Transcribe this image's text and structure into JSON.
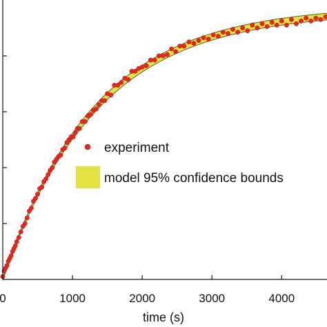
{
  "chart_data": {
    "type": "scatter",
    "title": "",
    "xlabel": "time (s)",
    "ylabel": "",
    "xlim": [
      0,
      4650
    ],
    "ylim": [
      0,
      1.0
    ],
    "grid": false,
    "x_ticks": [
      0,
      1000,
      2000,
      3000,
      4000
    ],
    "x_tick_labels": [
      "0",
      "1000",
      "2000",
      "3000",
      "4000"
    ],
    "y_ticks": [
      0.2,
      0.4,
      0.6,
      0.8
    ],
    "legend_position": "center-right",
    "model": {
      "form": "exponential-approach",
      "amplitude": 0.97,
      "time_constant": 1330,
      "band_half_width": 0.012
    },
    "series": [
      {
        "name": "experiment",
        "color": "#e02a1f",
        "marker": "circle",
        "x": [
          0,
          20,
          40,
          60,
          80,
          100,
          120,
          140,
          160,
          180,
          200,
          230,
          260,
          290,
          320,
          350,
          380,
          410,
          440,
          470,
          500,
          530,
          560,
          590,
          620,
          650,
          680,
          710,
          740,
          770,
          800,
          830,
          860,
          890,
          920,
          950,
          980,
          1010,
          1040,
          1070,
          1100,
          1140,
          1180,
          1220,
          1260,
          1300,
          1340,
          1380,
          1420,
          1460,
          1500,
          1550,
          1600,
          1650,
          1700,
          1750,
          1800,
          1850,
          1900,
          1950,
          2000,
          2060,
          2120,
          2180,
          2240,
          2300,
          2360,
          2420,
          2480,
          2540,
          2600,
          2670,
          2740,
          2810,
          2880,
          2950,
          3020,
          3090,
          3160,
          3230,
          3300,
          3370,
          3440,
          3510,
          3580,
          3650,
          3720,
          3790,
          3860,
          3930,
          4000,
          4070,
          4140,
          4210,
          4280,
          4350,
          4420,
          4490,
          4560,
          4630
        ],
        "y": [
          0.01,
          0.03,
          0.04,
          0.05,
          0.065,
          0.075,
          0.085,
          0.1,
          0.11,
          0.12,
          0.135,
          0.15,
          0.17,
          0.19,
          0.2,
          0.22,
          0.245,
          0.255,
          0.28,
          0.29,
          0.305,
          0.325,
          0.33,
          0.35,
          0.36,
          0.375,
          0.39,
          0.4,
          0.42,
          0.43,
          0.44,
          0.445,
          0.465,
          0.47,
          0.49,
          0.5,
          0.51,
          0.51,
          0.525,
          0.54,
          0.54,
          0.565,
          0.565,
          0.585,
          0.59,
          0.605,
          0.61,
          0.625,
          0.64,
          0.64,
          0.665,
          0.66,
          0.695,
          0.695,
          0.705,
          0.72,
          0.715,
          0.745,
          0.745,
          0.755,
          0.76,
          0.765,
          0.785,
          0.785,
          0.8,
          0.8,
          0.805,
          0.825,
          0.815,
          0.835,
          0.835,
          0.85,
          0.845,
          0.855,
          0.865,
          0.86,
          0.875,
          0.87,
          0.885,
          0.88,
          0.895,
          0.885,
          0.9,
          0.89,
          0.91,
          0.9,
          0.915,
          0.905,
          0.92,
          0.91,
          0.925,
          0.91,
          0.93,
          0.915,
          0.925,
          0.935,
          0.925,
          0.935,
          0.93,
          0.94
        ]
      }
    ],
    "legend": [
      {
        "label": "experiment",
        "swatch": "#e02a1f",
        "kind": "marker"
      },
      {
        "label": "model 95% confidence bounds",
        "swatch": "#e3e244",
        "kind": "patch"
      }
    ],
    "colors": {
      "band_fill": "#e3e244",
      "band_edge": "#5a5a2a",
      "axis": "#111111"
    }
  }
}
